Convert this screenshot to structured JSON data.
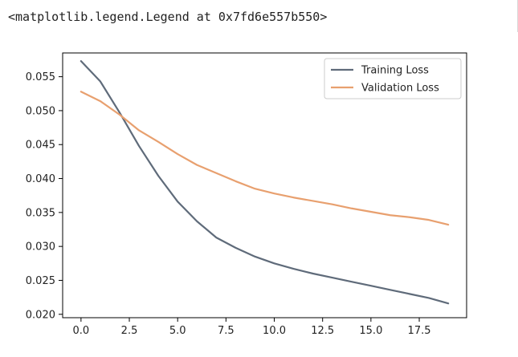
{
  "output": {
    "repr_text": "<matplotlib.legend.Legend at 0x7fd6e557b550>"
  },
  "chart_data": {
    "type": "line",
    "title": "",
    "xlabel": "",
    "ylabel": "",
    "xlim": [
      -0.95,
      19.95
    ],
    "ylim": [
      0.0195,
      0.0585
    ],
    "xticks": [
      0.0,
      2.5,
      5.0,
      7.5,
      10.0,
      12.5,
      15.0,
      17.5
    ],
    "xtick_labels": [
      "0.0",
      "2.5",
      "5.0",
      "7.5",
      "10.0",
      "12.5",
      "15.0",
      "17.5"
    ],
    "yticks": [
      0.02,
      0.025,
      0.03,
      0.035,
      0.04,
      0.045,
      0.05,
      0.055
    ],
    "ytick_labels": [
      "0.020",
      "0.025",
      "0.030",
      "0.035",
      "0.040",
      "0.045",
      "0.050",
      "0.055"
    ],
    "grid": false,
    "legend_position": "top-right",
    "x": [
      0,
      1,
      2,
      3,
      4,
      5,
      6,
      7,
      8,
      9,
      10,
      11,
      12,
      13,
      14,
      15,
      16,
      17,
      18,
      19
    ],
    "series": [
      {
        "name": "Training Loss",
        "color": "#5f6b7a",
        "values": [
          0.0573,
          0.0543,
          0.0497,
          0.0448,
          0.0404,
          0.0366,
          0.0337,
          0.0313,
          0.0298,
          0.0285,
          0.0275,
          0.0267,
          0.026,
          0.0254,
          0.0248,
          0.0242,
          0.0236,
          0.023,
          0.0224,
          0.0216
        ]
      },
      {
        "name": "Validation Loss",
        "color": "#e8a06f",
        "values": [
          0.0528,
          0.0514,
          0.0494,
          0.0471,
          0.0454,
          0.0436,
          0.042,
          0.0408,
          0.0396,
          0.0385,
          0.0378,
          0.0372,
          0.0367,
          0.0362,
          0.0356,
          0.0351,
          0.0346,
          0.0343,
          0.0339,
          0.0332
        ]
      }
    ]
  }
}
